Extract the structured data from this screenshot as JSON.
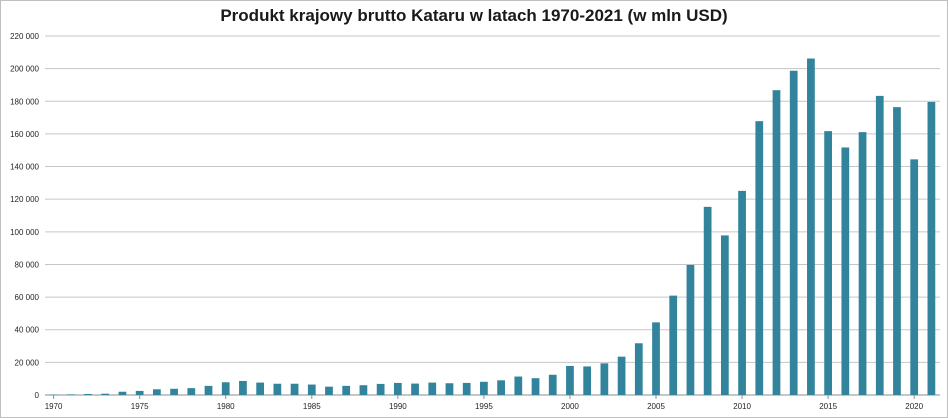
{
  "chart_data": {
    "type": "bar",
    "title": "Produkt krajowy brutto Kataru w latach 1970-2021 (w mln USD)",
    "xlabel": "",
    "ylabel": "",
    "x": [
      1970,
      1971,
      1972,
      1973,
      1974,
      1975,
      1976,
      1977,
      1978,
      1979,
      1980,
      1981,
      1982,
      1983,
      1984,
      1985,
      1986,
      1987,
      1988,
      1989,
      1990,
      1991,
      1992,
      1993,
      1994,
      1995,
      1996,
      1997,
      1998,
      1999,
      2000,
      2001,
      2002,
      2003,
      2004,
      2005,
      2006,
      2007,
      2008,
      2009,
      2010,
      2011,
      2012,
      2013,
      2014,
      2015,
      2016,
      2017,
      2018,
      2019,
      2020,
      2021
    ],
    "values": [
      300,
      400,
      600,
      800,
      2000,
      2500,
      3500,
      3800,
      4200,
      5600,
      7800,
      8600,
      7600,
      6900,
      6900,
      6400,
      5100,
      5600,
      6000,
      6800,
      7400,
      7000,
      7600,
      7200,
      7400,
      8100,
      9000,
      11300,
      10300,
      12400,
      17800,
      17500,
      19400,
      23500,
      31700,
      44500,
      60900,
      79700,
      115300,
      97800,
      125100,
      167800,
      186800,
      198700,
      206200,
      161700,
      151700,
      161100,
      183300,
      176400,
      144400,
      179600
    ],
    "ylim": [
      0,
      220000
    ],
    "yticks": [
      0,
      20000,
      40000,
      60000,
      80000,
      100000,
      120000,
      140000,
      160000,
      180000,
      200000,
      220000
    ],
    "ytick_labels": [
      "0",
      "20 000",
      "40 000",
      "60 000",
      "80 000",
      "100 000",
      "120 000",
      "140 000",
      "160 000",
      "180 000",
      "200 000",
      "220 000"
    ],
    "xtick_labels": [
      "1970",
      "1975",
      "1980",
      "1985",
      "1990",
      "1995",
      "2000",
      "2005",
      "2010",
      "2015",
      "2020"
    ],
    "grid": true,
    "legend": "none",
    "bar_color": "#31849b"
  }
}
